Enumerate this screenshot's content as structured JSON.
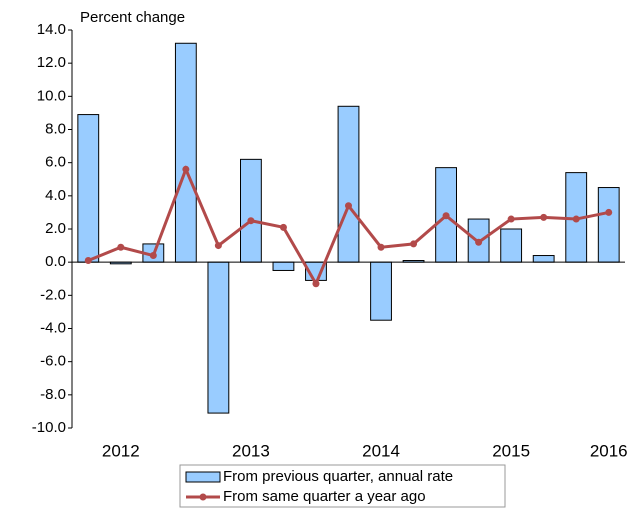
{
  "chart_data": {
    "type": "bar",
    "y_axis_label": "Percent change",
    "categories": [
      null,
      "2012",
      null,
      null,
      null,
      "2013",
      null,
      null,
      null,
      "2014",
      null,
      null,
      null,
      "2015",
      null,
      null,
      "2016"
    ],
    "series": [
      {
        "name": "From previous quarter, annual rate",
        "type": "bar",
        "color": "#99ccff",
        "values": [
          8.9,
          -0.1,
          1.1,
          13.2,
          -9.1,
          6.2,
          -0.5,
          -1.1,
          9.4,
          -3.5,
          0.1,
          5.7,
          2.6,
          2.0,
          0.4,
          5.4,
          4.5
        ]
      },
      {
        "name": "From same quarter a year ago",
        "type": "line",
        "color": "#b24a4a",
        "values": [
          0.1,
          0.9,
          0.4,
          5.6,
          1.0,
          2.5,
          2.1,
          -1.3,
          3.4,
          0.9,
          1.1,
          2.8,
          1.2,
          2.6,
          2.7,
          2.6,
          3.0
        ]
      }
    ],
    "ylim": [
      -10,
      14
    ],
    "yticks": [
      {
        "value": -10,
        "label": "-10.0"
      },
      {
        "value": -8,
        "label": "-8.0"
      },
      {
        "value": -6,
        "label": "-6.0"
      },
      {
        "value": -4,
        "label": "-4.0"
      },
      {
        "value": -2,
        "label": "-2.0"
      },
      {
        "value": 0,
        "label": "0.0"
      },
      {
        "value": 2,
        "label": "2.0"
      },
      {
        "value": 4,
        "label": "4.0"
      },
      {
        "value": 6,
        "label": "6.0"
      },
      {
        "value": 8,
        "label": "8.0"
      },
      {
        "value": 10,
        "label": "10.0"
      },
      {
        "value": 12,
        "label": "12.0"
      },
      {
        "value": 14,
        "label": "14.0"
      }
    ],
    "grid": false
  }
}
